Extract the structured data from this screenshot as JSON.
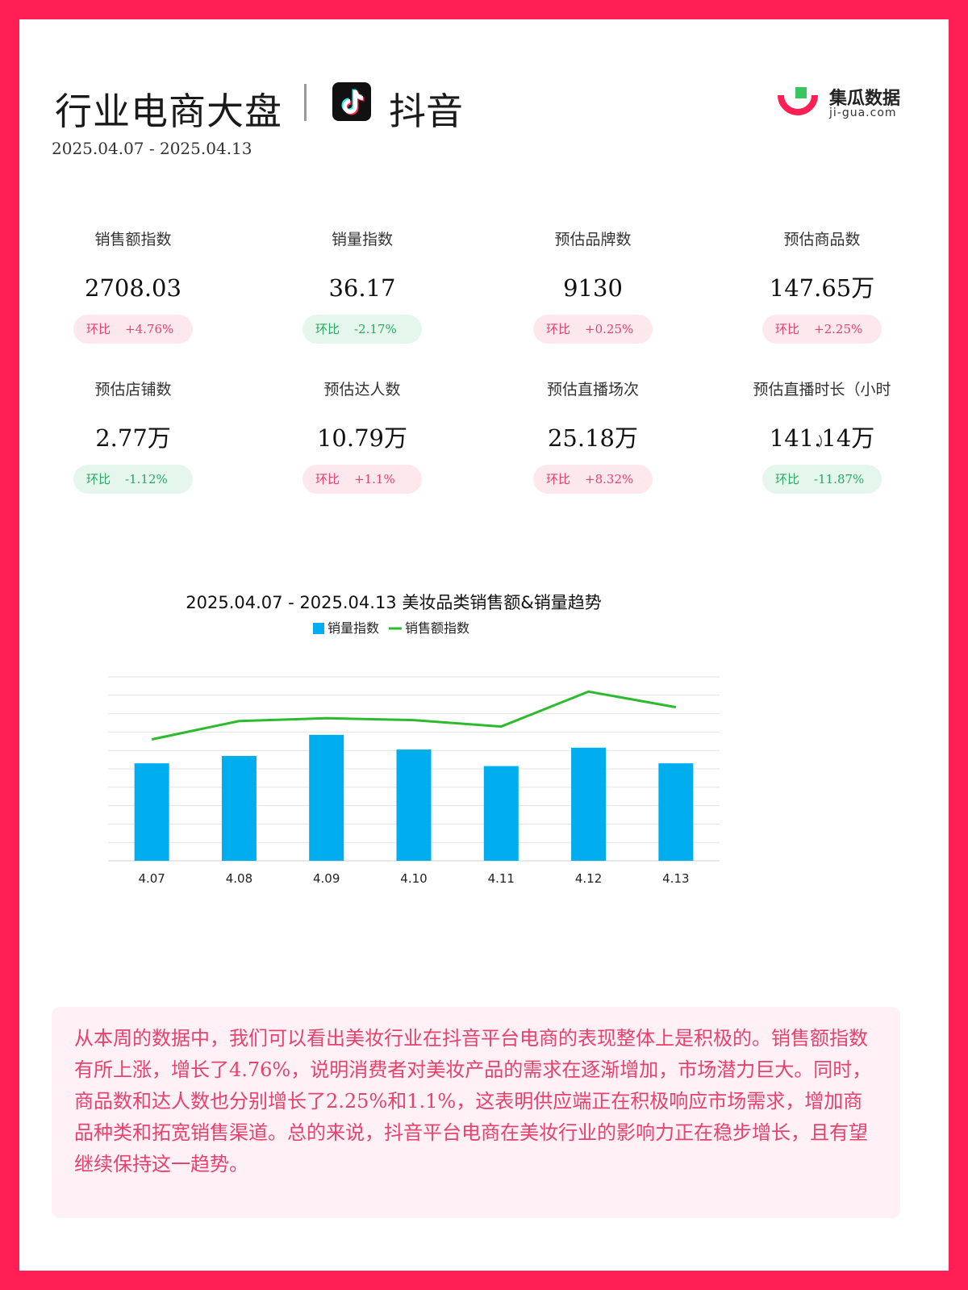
{
  "header": {
    "title": "行业电商大盘",
    "platform": "抖音",
    "date_range": "2025.04.07 - 2025.04.13",
    "brand_name": "集瓜数据",
    "brand_domain": "ji-gua.com"
  },
  "colors": {
    "frame": "#FF1F55",
    "bar": "#00AEEF",
    "line": "#2DBB2D",
    "up": "#E8416E",
    "down": "#27A961"
  },
  "metrics": [
    {
      "label": "销售额指数",
      "value": "2708.03",
      "mom_label": "环比",
      "mom": "+4.76%",
      "dir": "up"
    },
    {
      "label": "销量指数",
      "value": "36.17",
      "mom_label": "环比",
      "mom": "-2.17%",
      "dir": "down"
    },
    {
      "label": "预估品牌数",
      "value": "9130",
      "mom_label": "环比",
      "mom": "+0.25%",
      "dir": "up"
    },
    {
      "label": "预估商品数",
      "value": "147.65万",
      "mom_label": "环比",
      "mom": "+2.25%",
      "dir": "up"
    },
    {
      "label": "预估店铺数",
      "value": "2.77万",
      "mom_label": "环比",
      "mom": "-1.12%",
      "dir": "down"
    },
    {
      "label": "预估达人数",
      "value": "10.79万",
      "mom_label": "环比",
      "mom": "+1.1%",
      "dir": "up"
    },
    {
      "label": "预估直播场次",
      "value": "25.18万",
      "mom_label": "环比",
      "mom": "+8.32%",
      "dir": "up"
    },
    {
      "label": "预估直播时长（小时",
      "label_tail": "）",
      "value": "141.14万",
      "mom_label": "环比",
      "mom": "-11.87%",
      "dir": "down"
    }
  ],
  "chart_data": {
    "type": "bar",
    "title": "2025.04.07 - 2025.04.13 美妆品类销售额&销量趋势",
    "categories": [
      "4.07",
      "4.08",
      "4.09",
      "4.10",
      "4.11",
      "4.12",
      "4.13"
    ],
    "series": [
      {
        "name": "销量指数",
        "type": "bar",
        "values": [
          5.3,
          5.7,
          6.85,
          6.05,
          5.15,
          6.15,
          5.3
        ]
      },
      {
        "name": "销售额指数",
        "type": "line",
        "values": [
          6.6,
          7.6,
          7.75,
          7.65,
          7.3,
          9.2,
          8.35
        ]
      }
    ],
    "ylim": [
      0,
      10
    ],
    "grid": true,
    "legend": "top",
    "yaxis_labels": false
  },
  "summary": "从本周的数据中，我们可以看出美妆行业在抖音平台电商的表现整体上是积极的。销售额指数有所上涨，增长了4.76%，说明消费者对美妆产品的需求在逐渐增加，市场潜力巨大。同时，商品数和达人数也分别增长了2.25%和1.1%，这表明供应端正在积极响应市场需求，增加商品种类和拓宽销售渠道。总的来说，抖音平台电商在美妆行业的影响力正在稳步增长，且有望继续保持这一趋势。"
}
